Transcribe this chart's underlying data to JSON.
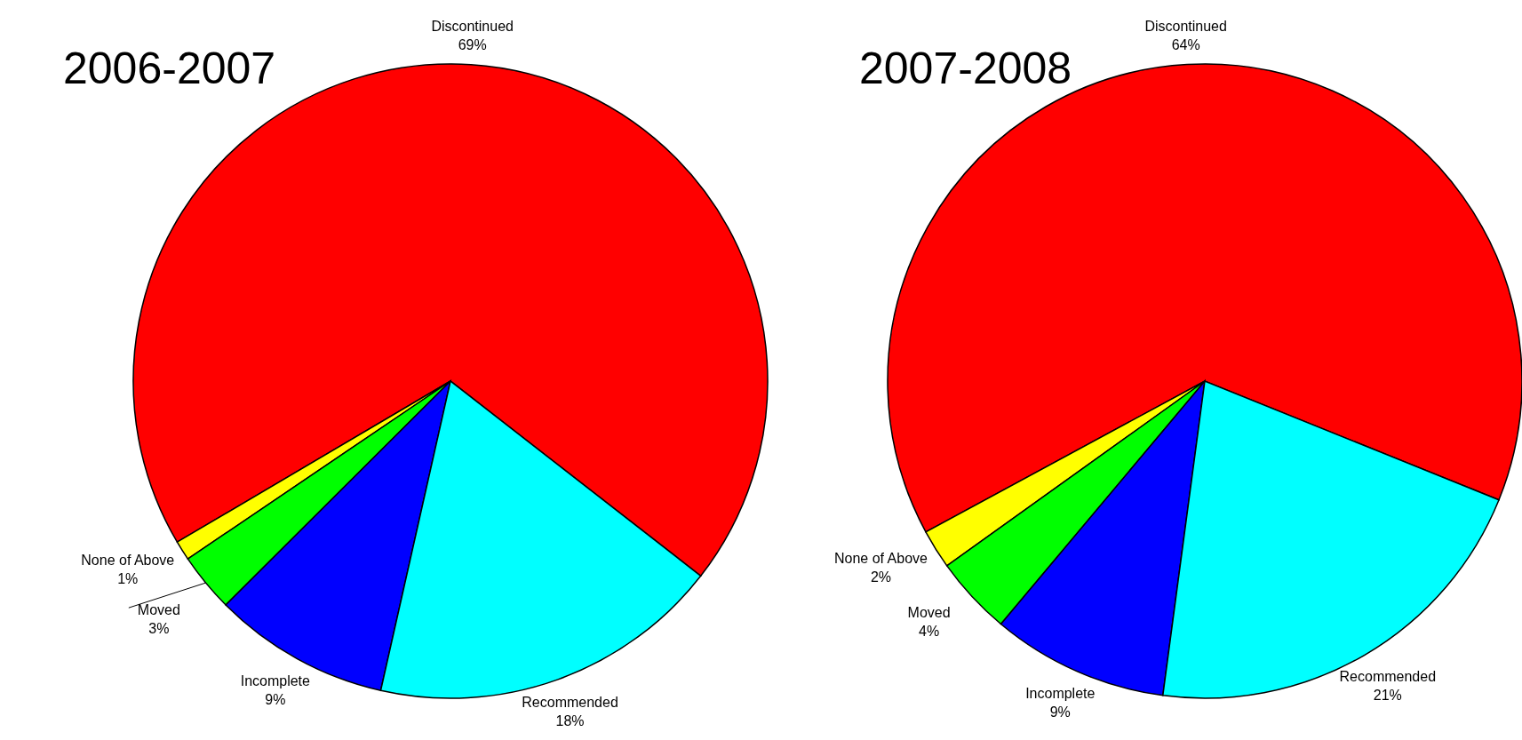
{
  "chart_data": [
    {
      "type": "pie",
      "title": "2006-2007",
      "categories": [
        "Discontinued",
        "None of Above",
        "Moved",
        "Incomplete",
        "Recommended"
      ],
      "values": [
        69,
        1,
        3,
        9,
        18
      ],
      "value_labels": [
        "69%",
        "1%",
        "3%",
        "9%",
        "18%"
      ],
      "colors": [
        "#ff0000",
        "#ffff00",
        "#00ff00",
        "#0000ff",
        "#00ffff"
      ],
      "legend": false
    },
    {
      "type": "pie",
      "title": "2007-2008",
      "categories": [
        "Discontinued",
        "None of Above",
        "Moved",
        "Incomplete",
        "Recommended"
      ],
      "values": [
        64,
        2,
        4,
        9,
        21
      ],
      "value_labels": [
        "64%",
        "2%",
        "4%",
        "9%",
        "21%"
      ],
      "colors": [
        "#ff0000",
        "#ffff00",
        "#00ff00",
        "#0000ff",
        "#00ffff"
      ],
      "legend": false
    }
  ]
}
